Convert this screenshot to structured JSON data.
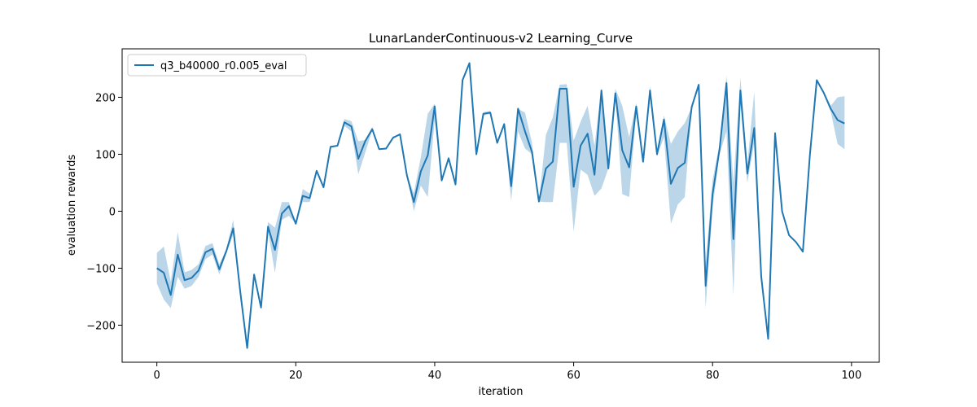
{
  "chart_data": {
    "type": "line",
    "title": "LunarLanderContinuous-v2 Learning_Curve",
    "xlabel": "iteration",
    "ylabel": "evaluation rewards",
    "xlim": [
      -5,
      104
    ],
    "ylim": [
      -265,
      285
    ],
    "xticks": [
      0,
      20,
      40,
      60,
      80,
      100
    ],
    "yticks": [
      -200,
      -100,
      0,
      100,
      200
    ],
    "xtick_labels": [
      "0",
      "20",
      "40",
      "60",
      "80",
      "100"
    ],
    "ytick_labels": [
      "−200",
      "−100",
      "0",
      "100",
      "200"
    ],
    "grid": false,
    "legend_position": "upper-left",
    "line_color": "#1f77b4",
    "band_color": "#1f77b4",
    "series": [
      {
        "name": "q3_b40000_r0.005_eval",
        "x": [
          0,
          1,
          2,
          3,
          4,
          5,
          6,
          7,
          8,
          9,
          10,
          11,
          12,
          13,
          14,
          15,
          16,
          17,
          18,
          19,
          20,
          21,
          22,
          23,
          24,
          25,
          26,
          27,
          28,
          29,
          30,
          31,
          32,
          33,
          34,
          35,
          36,
          37,
          38,
          39,
          40,
          41,
          42,
          43,
          44,
          45,
          46,
          47,
          48,
          49,
          50,
          51,
          52,
          53,
          54,
          55,
          56,
          57,
          58,
          59,
          60,
          61,
          62,
          63,
          64,
          65,
          66,
          67,
          68,
          69,
          70,
          71,
          72,
          73,
          74,
          75,
          76,
          77,
          78,
          79,
          80,
          81,
          82,
          83,
          84,
          85,
          86,
          87,
          88,
          89,
          90,
          91,
          92,
          93,
          94,
          95,
          96,
          97,
          98,
          99
        ],
        "y": [
          -100,
          -108,
          -147,
          -76,
          -121,
          -117,
          -104,
          -72,
          -66,
          -102,
          -70,
          -30,
          -140,
          -240,
          -111,
          -169,
          -27,
          -68,
          -4,
          9,
          -22,
          27,
          23,
          71,
          42,
          113,
          115,
          156,
          149,
          92,
          123,
          144,
          109,
          110,
          129,
          135,
          63,
          16,
          70,
          98,
          184,
          54,
          93,
          47,
          230,
          260,
          100,
          171,
          173,
          120,
          153,
          44,
          180,
          140,
          104,
          17,
          75,
          87,
          215,
          215,
          43,
          115,
          136,
          64,
          212,
          75,
          207,
          107,
          77,
          184,
          87,
          212,
          100,
          161,
          48,
          76,
          85,
          183,
          222,
          -131,
          30,
          109,
          225,
          -49,
          212,
          66,
          146,
          -115,
          -224,
          137,
          0,
          -42,
          -54,
          -71,
          98,
          230,
          208,
          180,
          160,
          154
        ],
        "lower": [
          -127,
          -155,
          -170,
          -115,
          -136,
          -131,
          -115,
          -84,
          -76,
          -111,
          -74,
          -41,
          -146,
          -240,
          -111,
          -169,
          -35,
          -108,
          -15,
          -8,
          -22,
          16,
          16,
          71,
          42,
          111,
          115,
          150,
          140,
          65,
          103,
          142,
          109,
          110,
          128,
          135,
          63,
          0,
          45,
          25,
          160,
          54,
          93,
          47,
          230,
          260,
          100,
          168,
          171,
          120,
          152,
          18,
          140,
          110,
          100,
          17,
          16,
          16,
          120,
          120,
          -36,
          73,
          64,
          27,
          40,
          75,
          200,
          30,
          25,
          172,
          84,
          200,
          96,
          130,
          -22,
          12,
          25,
          183,
          222,
          -170,
          5,
          100,
          140,
          -147,
          190,
          50,
          120,
          -115,
          -224,
          137,
          0,
          -42,
          -54,
          -71,
          98,
          230,
          205,
          175,
          118,
          109
        ],
        "upper": [
          -73,
          -62,
          -124,
          -37,
          -107,
          -103,
          -93,
          -61,
          -56,
          -93,
          -66,
          -15,
          -134,
          -240,
          -111,
          -169,
          -19,
          -29,
          16,
          16,
          -22,
          39,
          31,
          71,
          42,
          115,
          115,
          162,
          158,
          123,
          125,
          148,
          109,
          110,
          131,
          135,
          63,
          32,
          95,
          171,
          189,
          54,
          93,
          47,
          230,
          260,
          100,
          174,
          176,
          120,
          154,
          70,
          180,
          173,
          120,
          17,
          134,
          165,
          222,
          223,
          124,
          157,
          185,
          115,
          216,
          75,
          215,
          185,
          130,
          190,
          90,
          220,
          104,
          168,
          118,
          140,
          155,
          183,
          222,
          -92,
          55,
          118,
          238,
          50,
          234,
          82,
          210,
          -115,
          -224,
          137,
          0,
          -42,
          -54,
          -71,
          98,
          230,
          211,
          185,
          200,
          202
        ]
      }
    ]
  }
}
